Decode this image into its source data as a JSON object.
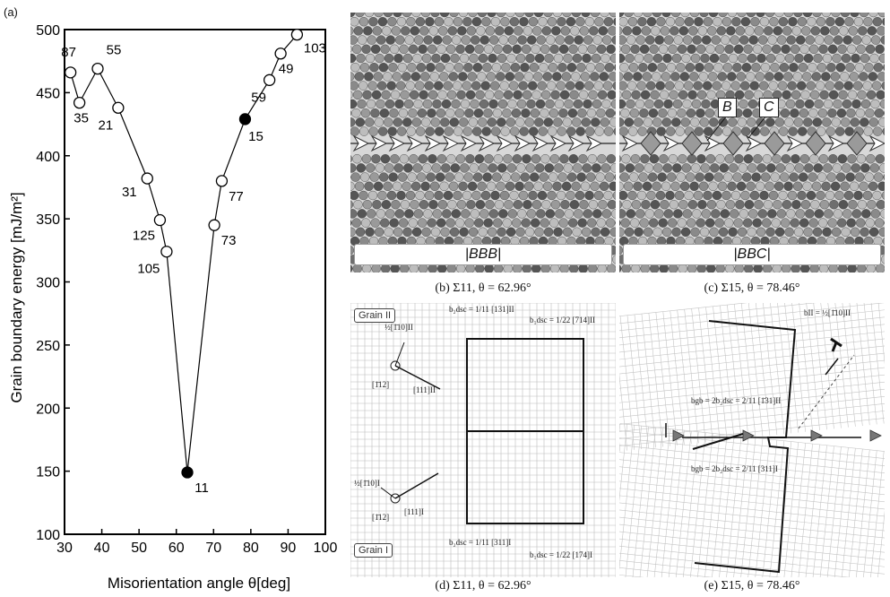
{
  "panel_a_label": "(a)",
  "chart_data": {
    "type": "scatter",
    "xlabel": "Misorientation angle θ[deg]",
    "ylabel": "Grain boundary energy [mJ/m²]",
    "xlim": [
      30,
      100
    ],
    "ylim": [
      100,
      500
    ],
    "x_ticks": [
      "30",
      "40",
      "50",
      "60",
      "70",
      "80",
      "90",
      "100"
    ],
    "y_ticks": [
      "100",
      "150",
      "200",
      "250",
      "300",
      "350",
      "400",
      "450",
      "500"
    ],
    "grid": false,
    "points": [
      {
        "sigma": "87",
        "x": 31.6,
        "y": 466,
        "filled": false
      },
      {
        "sigma": "35",
        "x": 34.0,
        "y": 442,
        "filled": false
      },
      {
        "sigma": "55",
        "x": 38.9,
        "y": 469,
        "filled": false
      },
      {
        "sigma": "21",
        "x": 44.4,
        "y": 438,
        "filled": false
      },
      {
        "sigma": "31",
        "x": 52.2,
        "y": 382,
        "filled": false
      },
      {
        "sigma": "125",
        "x": 55.6,
        "y": 349,
        "filled": false
      },
      {
        "sigma": "105",
        "x": 57.4,
        "y": 324,
        "filled": false
      },
      {
        "sigma": "11",
        "x": 62.96,
        "y": 149,
        "filled": true
      },
      {
        "sigma": "73",
        "x": 70.2,
        "y": 345,
        "filled": false
      },
      {
        "sigma": "77",
        "x": 72.2,
        "y": 380,
        "filled": false
      },
      {
        "sigma": "15",
        "x": 78.46,
        "y": 429,
        "filled": true
      },
      {
        "sigma": "59",
        "x": 85.0,
        "y": 460,
        "filled": false
      },
      {
        "sigma": "49",
        "x": 88.0,
        "y": 481,
        "filled": false
      },
      {
        "sigma": "103",
        "x": 92.4,
        "y": 496,
        "filled": false
      }
    ]
  },
  "panel_b": {
    "boundary_label": "BBB",
    "caption": "(b) Σ11, θ = 62.96°"
  },
  "panel_c": {
    "label_b": "B",
    "label_c": "C",
    "boundary_label": "BBC",
    "caption": "(c) Σ15, θ = 78.46°"
  },
  "panel_d": {
    "grain_ii": "Grain II",
    "grain_i": "Grain I",
    "caption": "(d) Σ11, θ = 62.96°",
    "vec_top_left": "½[1̄10]II",
    "vec_top_dir": "[111]II",
    "vec_top_axis": "[1̄12]",
    "vec_bot_left": "½[1̄10]I",
    "vec_bot_dir": "[111]I",
    "vec_bot_axis": "[1̄12]",
    "b2_top": "b₂dsc = 1/11 [131]II",
    "b1_top": "b₁dsc = 1/22 [714]II",
    "b2_bot": "b₂dsc = 1/11 [311]I",
    "b1_bot": "b₁dsc = 1/22 [174]I"
  },
  "panel_e": {
    "caption": "(e) Σ15, θ = 78.46°",
    "b_ii": "bII = ½[1̄10]II",
    "b_gb_top": "bgb = 2b₂dsc = 2/11 [1̄31]II",
    "b_gb_bot": "bgb = 2b₂dsc = 2/11 [311]I"
  }
}
